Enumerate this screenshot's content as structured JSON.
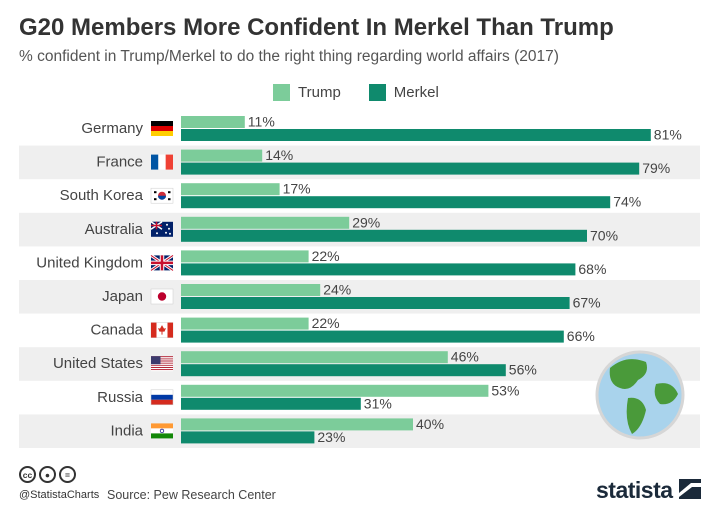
{
  "header": {
    "title": "G20 Members More Confident In Merkel Than Trump",
    "subtitle": "% confident in Trump/Merkel to do the right thing regarding world affairs (2017)"
  },
  "footer": {
    "handle": "@StatistaCharts",
    "source": "Source: Pew Research Center",
    "brand": "statista"
  },
  "colors": {
    "trump": "#7ccc9a",
    "merkel": "#0f8a6d",
    "stripe": "#efefef",
    "text": "#444444"
  },
  "chart_data": {
    "type": "bar",
    "orientation": "horizontal",
    "title": "G20 Members More Confident In Merkel Than Trump",
    "subtitle": "% confident in Trump/Merkel to do the right thing regarding world affairs (2017)",
    "categories": [
      "Germany",
      "France",
      "South Korea",
      "Australia",
      "United Kingdom",
      "Japan",
      "Canada",
      "United States",
      "Russia",
      "India"
    ],
    "series": [
      {
        "name": "Trump",
        "values": [
          11,
          14,
          17,
          29,
          22,
          24,
          22,
          46,
          53,
          40
        ],
        "color": "#7ccc9a"
      },
      {
        "name": "Merkel",
        "values": [
          81,
          79,
          74,
          70,
          68,
          67,
          66,
          56,
          31,
          23
        ],
        "color": "#0f8a6d"
      }
    ],
    "value_suffix": "%",
    "xlim": [
      0,
      81
    ],
    "legend_position": "top",
    "grid": false
  },
  "flags": [
    "germany-flag",
    "france-flag",
    "south-korea-flag",
    "australia-flag",
    "united-kingdom-flag",
    "japan-flag",
    "canada-flag",
    "united-states-flag",
    "russia-flag",
    "india-flag"
  ]
}
